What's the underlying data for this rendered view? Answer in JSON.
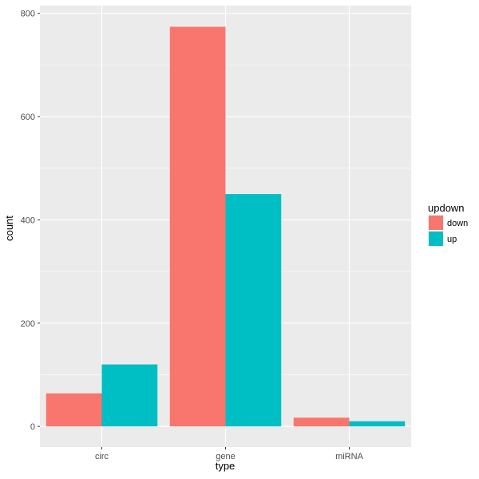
{
  "chart_data": {
    "type": "bar",
    "title": "",
    "xlabel": "type",
    "ylabel": "count",
    "categories": [
      "circ",
      "gene",
      "miRNA"
    ],
    "series": [
      {
        "name": "down",
        "values": [
          64,
          774,
          17
        ],
        "color": "#F8766D"
      },
      {
        "name": "up",
        "values": [
          120,
          450,
          10
        ],
        "color": "#00BFC4"
      }
    ],
    "ylim": [
      -40,
      815
    ],
    "yticks": [
      0,
      200,
      400,
      600,
      800
    ],
    "yminor": [
      100,
      300,
      500,
      700
    ],
    "grid": true,
    "panel_background": "#EBEBEB",
    "legend": {
      "title": "updown",
      "position": "right"
    }
  }
}
